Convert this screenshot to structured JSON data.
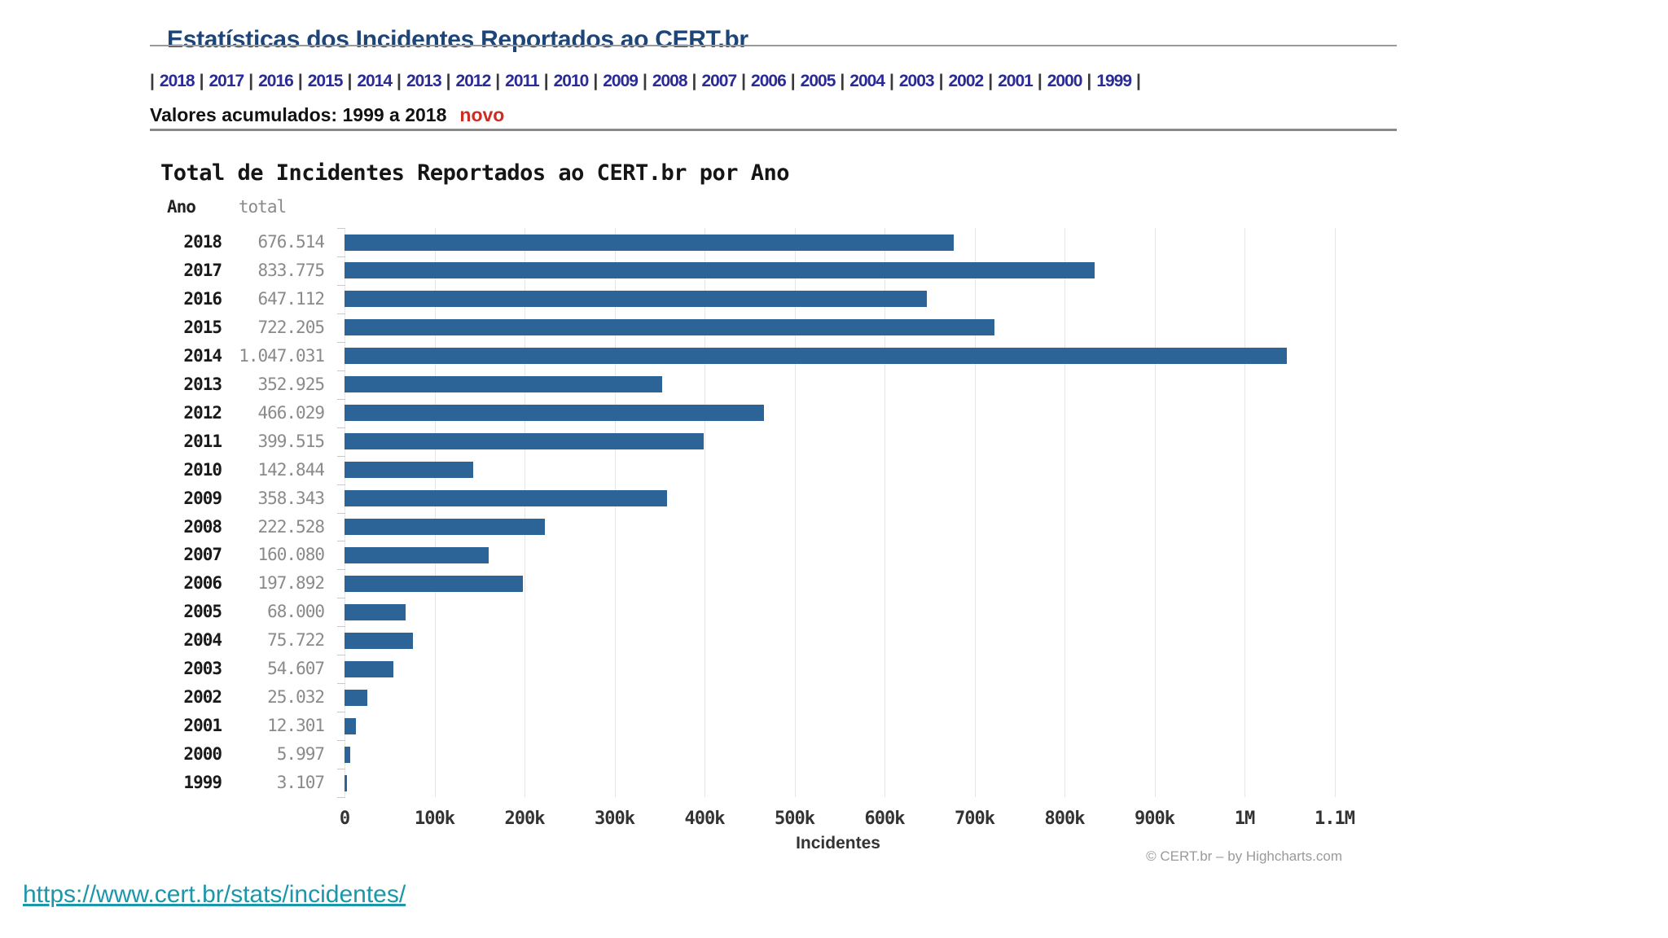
{
  "page": {
    "title": "Estatísticas dos Incidentes Reportados ao CERT.br"
  },
  "year_nav": {
    "years": [
      "2018",
      "2017",
      "2016",
      "2015",
      "2014",
      "2013",
      "2012",
      "2011",
      "2010",
      "2009",
      "2008",
      "2007",
      "2006",
      "2005",
      "2004",
      "2003",
      "2002",
      "2001",
      "2000",
      "1999"
    ],
    "separator": "|"
  },
  "subheader": {
    "text": "Valores acumulados: 1999 a 2018",
    "badge": "novo"
  },
  "chart_data": {
    "type": "bar",
    "orientation": "horizontal",
    "title": "Total de Incidentes Reportados ao CERT.br por Ano",
    "columns": {
      "year": "Ano",
      "total": "total"
    },
    "categories": [
      "2018",
      "2017",
      "2016",
      "2015",
      "2014",
      "2013",
      "2012",
      "2011",
      "2010",
      "2009",
      "2008",
      "2007",
      "2006",
      "2005",
      "2004",
      "2003",
      "2002",
      "2001",
      "2000",
      "1999"
    ],
    "values": [
      676514,
      833775,
      647112,
      722205,
      1047031,
      352925,
      466029,
      399515,
      142844,
      358343,
      222528,
      160080,
      197892,
      68000,
      75722,
      54607,
      25032,
      12301,
      5997,
      3107
    ],
    "value_labels": [
      "676.514",
      "833.775",
      "647.112",
      "722.205",
      "1.047.031",
      "352.925",
      "466.029",
      "399.515",
      "142.844",
      "358.343",
      "222.528",
      "160.080",
      "197.892",
      "68.000",
      "75.722",
      "54.607",
      "25.032",
      "12.301",
      "5.997",
      "3.107"
    ],
    "xlabel": "Incidentes",
    "xlim": [
      0,
      1150000
    ],
    "x_tick_step": 100000,
    "x_tick_labels": [
      "0",
      "100k",
      "200k",
      "300k",
      "400k",
      "500k",
      "600k",
      "700k",
      "800k",
      "900k",
      "1M",
      "1.1M"
    ],
    "grid": true,
    "legend": "none",
    "bar_color": "#2d6498",
    "credits": "© CERT.br – by Highcharts.com"
  },
  "footer": {
    "url": "https://www.cert.br/stats/incidentes/"
  },
  "colors": {
    "title_blue": "#1d4577",
    "nav_link_navy": "#2b2b96",
    "badge_red": "#cc2d25",
    "bar_blue": "#2d6498",
    "total_gray": "#8a8a8a",
    "gridline_gray": "#e6e6e6",
    "link_teal": "#1a97aa"
  }
}
